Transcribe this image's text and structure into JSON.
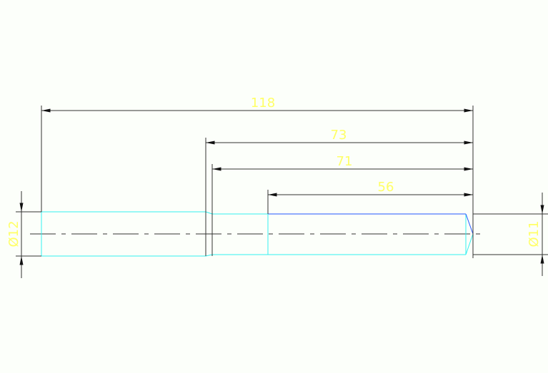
{
  "drawing": {
    "dimensions": {
      "overall_length": "118",
      "length_73": "73",
      "length_71": "71",
      "length_56": "56",
      "diameter_left": "Ø12",
      "diameter_right": "Ø11"
    },
    "colors": {
      "dimension_text": "#ffff66",
      "outline": "#33f0f0",
      "highlight_edge": "#2255ff",
      "dimension_lines": "#333333",
      "background": "#fcfffa"
    }
  }
}
